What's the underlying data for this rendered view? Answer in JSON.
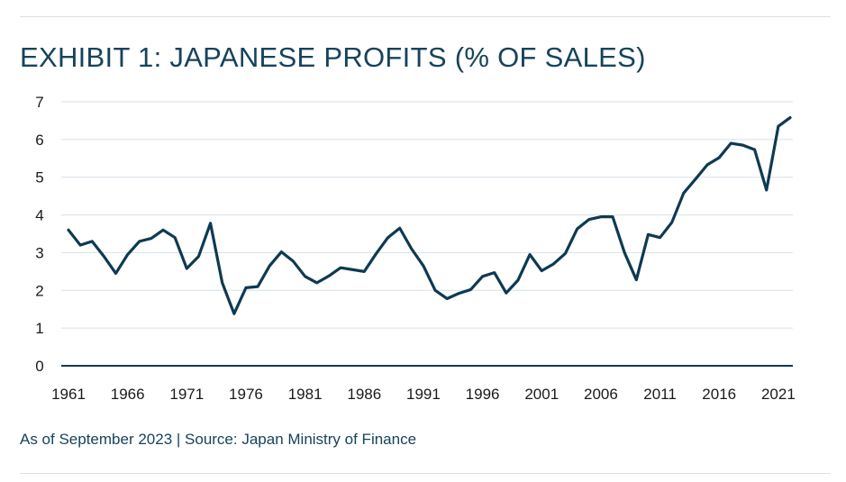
{
  "chart_data": {
    "type": "line",
    "title": "EXHIBIT 1: JAPANESE PROFITS (% OF SALES)",
    "xlabel": "",
    "ylabel": "",
    "xlim": [
      1961,
      2022
    ],
    "ylim": [
      0,
      7
    ],
    "yticks": [
      "0",
      "1",
      "2",
      "3",
      "4",
      "5",
      "6",
      "7"
    ],
    "xticks": [
      "1961",
      "1966",
      "1971",
      "1976",
      "1981",
      "1986",
      "1991",
      "1996",
      "2001",
      "2006",
      "2011",
      "2016",
      "2021"
    ],
    "grid": true,
    "series": [
      {
        "name": "Japanese profits (% of sales)",
        "color": "#0e3a52",
        "x": [
          1961,
          1962,
          1963,
          1964,
          1965,
          1966,
          1967,
          1968,
          1969,
          1970,
          1971,
          1972,
          1973,
          1974,
          1975,
          1976,
          1977,
          1978,
          1979,
          1980,
          1981,
          1982,
          1983,
          1984,
          1985,
          1986,
          1987,
          1988,
          1989,
          1990,
          1991,
          1992,
          1993,
          1994,
          1995,
          1996,
          1997,
          1998,
          1999,
          2000,
          2001,
          2002,
          2003,
          2004,
          2005,
          2006,
          2007,
          2008,
          2009,
          2010,
          2011,
          2012,
          2013,
          2014,
          2015,
          2016,
          2017,
          2018,
          2019,
          2020,
          2021,
          2022
        ],
        "values": [
          3.6,
          3.2,
          3.3,
          2.9,
          2.45,
          2.95,
          3.3,
          3.38,
          3.6,
          3.4,
          2.58,
          2.9,
          3.78,
          2.2,
          1.38,
          2.07,
          2.1,
          2.65,
          3.02,
          2.77,
          2.37,
          2.2,
          2.38,
          2.6,
          2.55,
          2.5,
          2.97,
          3.4,
          3.65,
          3.1,
          2.65,
          2.0,
          1.78,
          1.92,
          2.02,
          2.37,
          2.47,
          1.93,
          2.27,
          2.95,
          2.52,
          2.7,
          2.98,
          3.63,
          3.88,
          3.95,
          3.95,
          3.0,
          2.28,
          3.48,
          3.4,
          3.8,
          4.58,
          4.95,
          5.33,
          5.52,
          5.9,
          5.85,
          5.73,
          4.66,
          6.35,
          6.58
        ]
      }
    ]
  },
  "footnote": "As of September 2023 | Source: Japan Ministry of Finance"
}
